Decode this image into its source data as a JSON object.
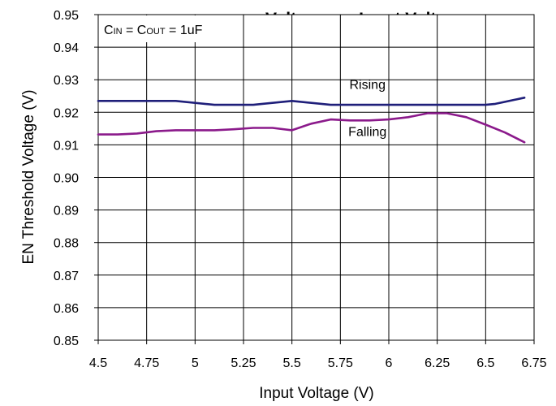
{
  "chart_data": {
    "type": "line",
    "title_visible": "Voltage vs. Input Voltage",
    "xlabel": "Input Voltage (V)",
    "ylabel": "EN Threshold Voltage (V)",
    "xlim": [
      4.5,
      6.75
    ],
    "ylim": [
      0.85,
      0.95
    ],
    "x_ticks": [
      4.5,
      4.75,
      5,
      5.25,
      5.5,
      5.75,
      6,
      6.25,
      6.5,
      6.75
    ],
    "x_tick_labels": [
      "4.5",
      "4.75",
      "5",
      "5.25",
      "5.5",
      "5.75",
      "6",
      "6.25",
      "6.5",
      "6.75"
    ],
    "y_ticks": [
      0.85,
      0.86,
      0.87,
      0.88,
      0.89,
      0.9,
      0.91,
      0.92,
      0.93,
      0.94,
      0.95
    ],
    "y_tick_labels": [
      "0.85",
      "0.86",
      "0.87",
      "0.88",
      "0.89",
      "0.90",
      "0.91",
      "0.92",
      "0.93",
      "0.94",
      "0.95"
    ],
    "grid": true,
    "condition_box": {
      "c_in_main": "C",
      "c_in_sub": "IN",
      "c_out_main": "C",
      "c_out_sub": "OUT",
      "value": "1uF"
    },
    "series": [
      {
        "name": "Rising",
        "color": "#1f1f7a",
        "x": [
          4.5,
          4.7,
          4.9,
          5.1,
          5.3,
          5.5,
          5.7,
          5.9,
          6.1,
          6.3,
          6.5,
          6.55,
          6.7
        ],
        "y": [
          0.9235,
          0.9235,
          0.9235,
          0.9223,
          0.9223,
          0.9235,
          0.9223,
          0.9223,
          0.9223,
          0.9223,
          0.9223,
          0.9226,
          0.9245
        ]
      },
      {
        "name": "Falling",
        "color": "#8b1a8b",
        "x": [
          4.5,
          4.6,
          4.7,
          4.8,
          4.9,
          5.0,
          5.1,
          5.2,
          5.3,
          5.4,
          5.5,
          5.6,
          5.7,
          5.8,
          5.9,
          6.0,
          6.1,
          6.2,
          6.3,
          6.4,
          6.5,
          6.6,
          6.7
        ],
        "y": [
          0.9132,
          0.9132,
          0.9135,
          0.9142,
          0.9145,
          0.9145,
          0.9145,
          0.9148,
          0.9152,
          0.9152,
          0.9145,
          0.9165,
          0.9178,
          0.9175,
          0.9175,
          0.9178,
          0.9185,
          0.9197,
          0.9197,
          0.9185,
          0.9162,
          0.9138,
          0.9108
        ]
      }
    ],
    "annotations": [
      {
        "text": "Rising",
        "x": 5.89,
        "y": 0.9272
      },
      {
        "text": "Falling",
        "x": 5.89,
        "y": 0.9127
      }
    ]
  }
}
